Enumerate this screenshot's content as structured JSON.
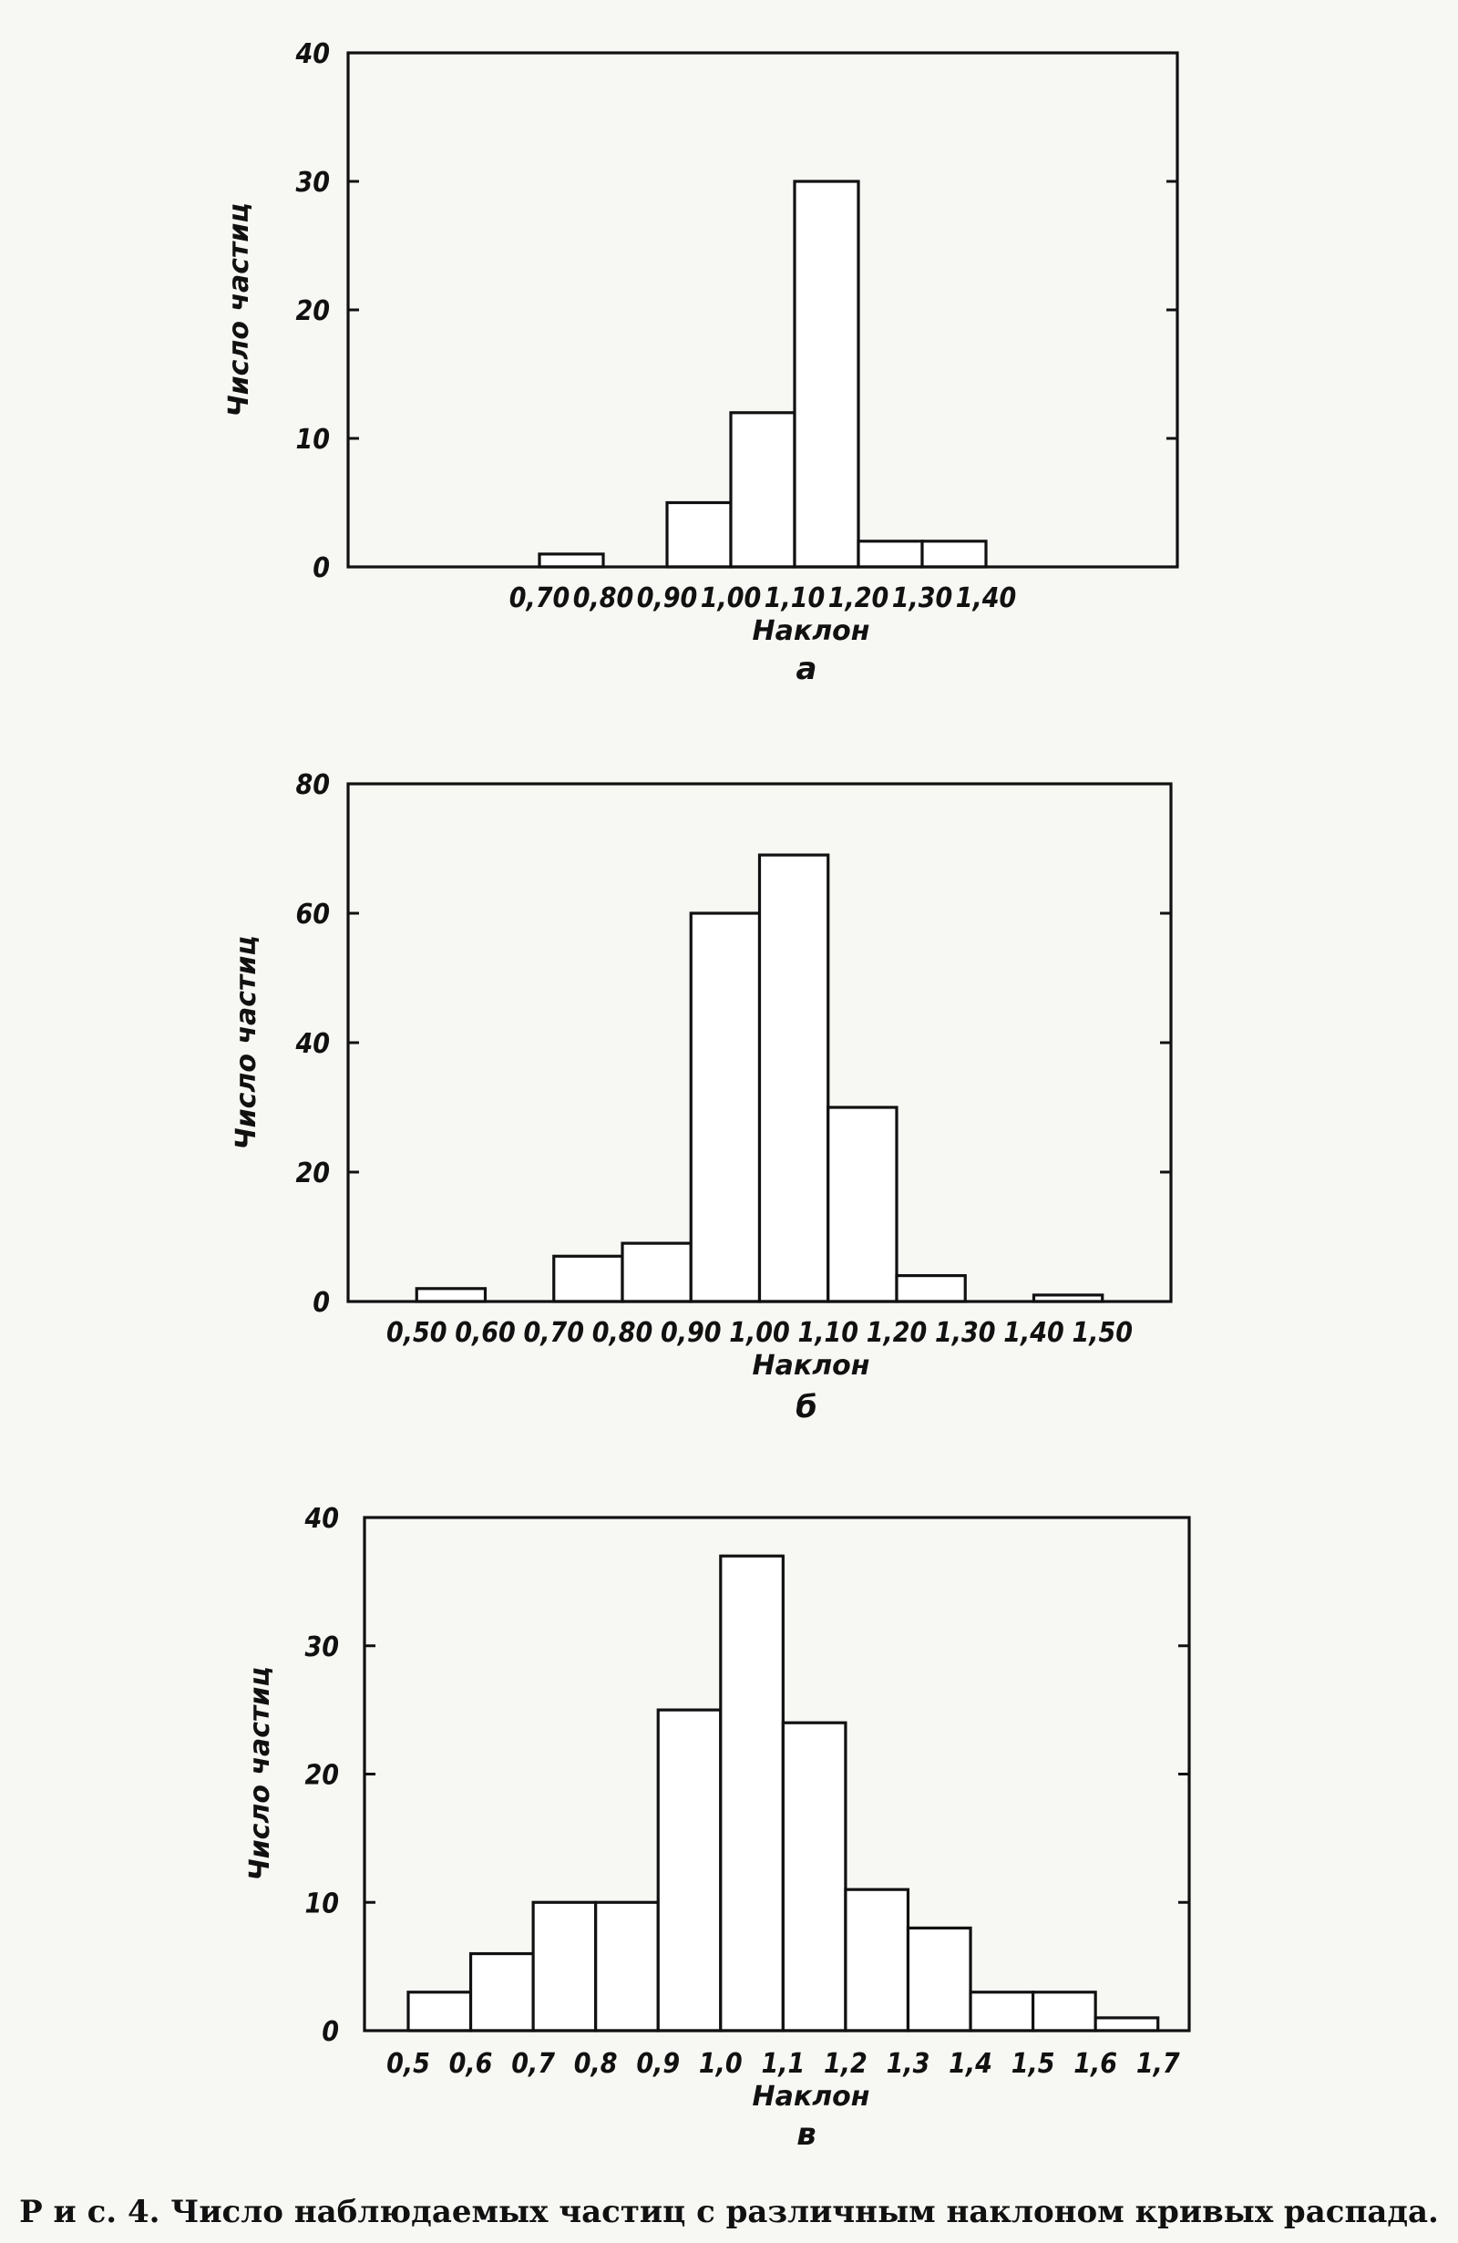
{
  "chart_data": [
    {
      "type": "bar",
      "histogram": true,
      "sublabel": "а",
      "xlabel": "Наклон",
      "ylabel": "Число частиц",
      "ylim": [
        0,
        40
      ],
      "yticks": [
        "0",
        "10",
        "20",
        "30",
        "40"
      ],
      "bin_edges": [
        "0,70",
        "0,80",
        "0,90",
        "1,00",
        "1,10",
        "1,20",
        "1,30",
        "1,40"
      ],
      "bins": [
        {
          "from": 0.7,
          "to": 0.8,
          "value": 1
        },
        {
          "from": 0.9,
          "to": 1.0,
          "value": 5
        },
        {
          "from": 1.0,
          "to": 1.1,
          "value": 12
        },
        {
          "from": 1.1,
          "to": 1.2,
          "value": 30
        },
        {
          "from": 1.2,
          "to": 1.3,
          "value": 2
        },
        {
          "from": 1.3,
          "to": 1.4,
          "value": 2
        }
      ]
    },
    {
      "type": "bar",
      "histogram": true,
      "sublabel": "б",
      "xlabel": "Наклон",
      "ylabel": "Число частиц",
      "ylim": [
        0,
        80
      ],
      "yticks": [
        "0",
        "20",
        "40",
        "60",
        "80"
      ],
      "bin_edges": [
        "0,50",
        "0,60",
        "0,70",
        "0,80",
        "0,90",
        "1,00",
        "1,10",
        "1,20",
        "1,30",
        "1,40",
        "1,50"
      ],
      "bins": [
        {
          "from": 0.5,
          "to": 0.6,
          "value": 2
        },
        {
          "from": 0.7,
          "to": 0.8,
          "value": 7
        },
        {
          "from": 0.8,
          "to": 0.9,
          "value": 9
        },
        {
          "from": 0.9,
          "to": 1.0,
          "value": 60
        },
        {
          "from": 1.0,
          "to": 1.1,
          "value": 69
        },
        {
          "from": 1.1,
          "to": 1.2,
          "value": 30
        },
        {
          "from": 1.2,
          "to": 1.3,
          "value": 4
        },
        {
          "from": 1.4,
          "to": 1.5,
          "value": 1
        }
      ]
    },
    {
      "type": "bar",
      "histogram": true,
      "sublabel": "в",
      "xlabel": "Наклон",
      "ylabel": "Число частиц",
      "ylim": [
        0,
        40
      ],
      "yticks": [
        "0",
        "10",
        "20",
        "30",
        "40"
      ],
      "bin_edges": [
        "0,5",
        "0,6",
        "0,7",
        "0,8",
        "0,9",
        "1,0",
        "1,1",
        "1,2",
        "1,3",
        "1,4",
        "1,5",
        "1,6",
        "1,7"
      ],
      "bins": [
        {
          "from": 0.5,
          "to": 0.6,
          "value": 3
        },
        {
          "from": 0.6,
          "to": 0.7,
          "value": 6
        },
        {
          "from": 0.7,
          "to": 0.8,
          "value": 10
        },
        {
          "from": 0.8,
          "to": 0.9,
          "value": 10
        },
        {
          "from": 0.9,
          "to": 1.0,
          "value": 25
        },
        {
          "from": 1.0,
          "to": 1.1,
          "value": 37
        },
        {
          "from": 1.1,
          "to": 1.2,
          "value": 24
        },
        {
          "from": 1.2,
          "to": 1.3,
          "value": 11
        },
        {
          "from": 1.3,
          "to": 1.4,
          "value": 8
        },
        {
          "from": 1.4,
          "to": 1.5,
          "value": 3
        },
        {
          "from": 1.5,
          "to": 1.6,
          "value": 3
        },
        {
          "from": 1.6,
          "to": 1.7,
          "value": 1
        }
      ]
    }
  ],
  "caption": "Р и с. 4. Число наблюдаемых частиц с различным наклоном кривых распада."
}
